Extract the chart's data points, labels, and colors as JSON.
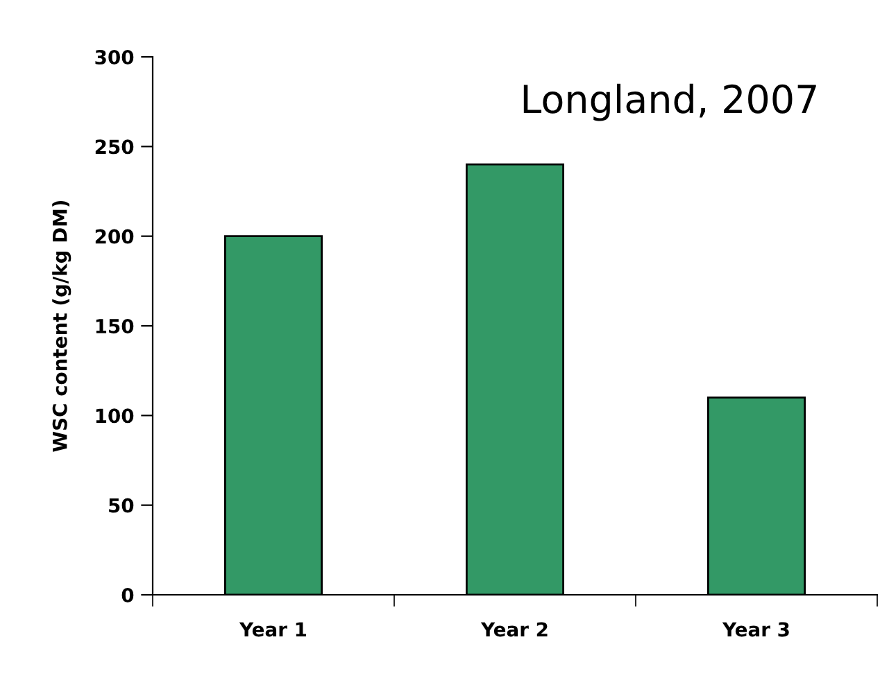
{
  "chart_data": {
    "type": "bar",
    "title": "Longland, 2007",
    "ylabel": "WSC content (g/kg DM)",
    "categories": [
      "Year 1",
      "Year 2",
      "Year 3"
    ],
    "values": [
      200,
      240,
      110
    ],
    "color": "#339966",
    "ylim": [
      0,
      300
    ],
    "yticks": [
      0,
      50,
      100,
      150,
      200,
      250,
      300
    ],
    "grid": false,
    "legend": false
  }
}
